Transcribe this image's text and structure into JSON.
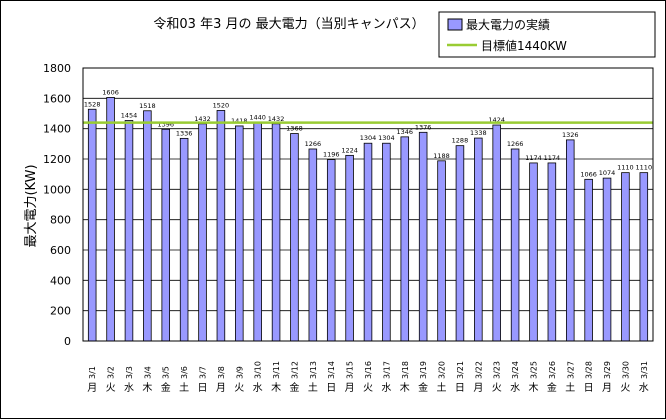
{
  "colors": {
    "bar_fill": "#9999ff",
    "bar_stroke": "#000000",
    "target_line": "#99cc33",
    "grid": "#000000"
  },
  "chart_data": {
    "type": "bar",
    "title": "令和03 年3 月の 最大電力（当別キャンパス）",
    "ylabel": "最大電力(KW)",
    "xlabel": "",
    "ylim": [
      0,
      1800
    ],
    "yticks": [
      0,
      200,
      400,
      600,
      800,
      1000,
      1200,
      1400,
      1600,
      1800
    ],
    "grid": true,
    "legend_position": "top-right",
    "categories": [
      "3/1",
      "3/2",
      "3/3",
      "3/4",
      "3/5",
      "3/6",
      "3/7",
      "3/8",
      "3/9",
      "3/10",
      "3/11",
      "3/12",
      "3/13",
      "3/14",
      "3/15",
      "3/16",
      "3/17",
      "3/18",
      "3/19",
      "3/20",
      "3/21",
      "3/22",
      "3/23",
      "3/24",
      "3/25",
      "3/26",
      "3/27",
      "3/28",
      "3/29",
      "3/30",
      "3/31"
    ],
    "weekdays": [
      "月",
      "火",
      "水",
      "木",
      "金",
      "土",
      "日",
      "月",
      "火",
      "水",
      "木",
      "金",
      "土",
      "日",
      "月",
      "火",
      "水",
      "木",
      "金",
      "土",
      "日",
      "月",
      "火",
      "水",
      "木",
      "金",
      "土",
      "日",
      "月",
      "火",
      "水"
    ],
    "series": [
      {
        "name": "最大電力の実績",
        "type": "bar",
        "values": [
          1528,
          1606,
          1454,
          1518,
          1396,
          1336,
          1432,
          1520,
          1418,
          1440,
          1432,
          1368,
          1266,
          1196,
          1224,
          1304,
          1304,
          1346,
          1376,
          1188,
          1288,
          1338,
          1424,
          1266,
          1174,
          1174,
          1326,
          1066,
          1074,
          1110,
          1110
        ]
      },
      {
        "name": "目標値1440KW",
        "type": "line",
        "value": 1440
      }
    ]
  }
}
